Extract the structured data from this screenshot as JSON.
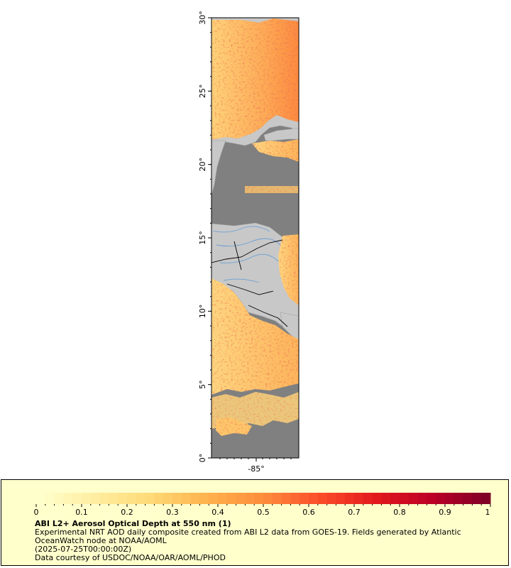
{
  "map": {
    "lat_labels": [
      "30°",
      "25°",
      "20°",
      "15°",
      "10°",
      "5°",
      "0°"
    ],
    "lon_labels": [
      "-85°"
    ],
    "colors": {
      "land": "#c8c8c8",
      "ocean": "#808080",
      "coastline": "#a0a0a0",
      "rivers": "#6a9fd4",
      "borders": "#000000"
    }
  },
  "legend": {
    "title": "ABI L2+ Aerosol Optical Depth at 550 nm (1)",
    "description_line1": "Experimental NRT AOD daily composite created from ABI L2 data from GOES-19. Fields generated by Atlantic",
    "description_line2": "OceanWatch node at NOAA/AOML",
    "date": "(2025-07-25T00:00:00Z)",
    "credit": "Data courtesy of USDOC/NOAA/OAR/AOML/PHOD",
    "ticks": [
      "0",
      "0.1",
      "0.2",
      "0.3",
      "0.4",
      "0.5",
      "0.6",
      "0.7",
      "0.8",
      "0.9",
      "1"
    ],
    "colorbar_stops": [
      "#ffffcc",
      "#ffeda0",
      "#fed976",
      "#feb24c",
      "#fd8d3c",
      "#fc4e2a",
      "#e31a1c",
      "#bd0026",
      "#800026"
    ]
  }
}
